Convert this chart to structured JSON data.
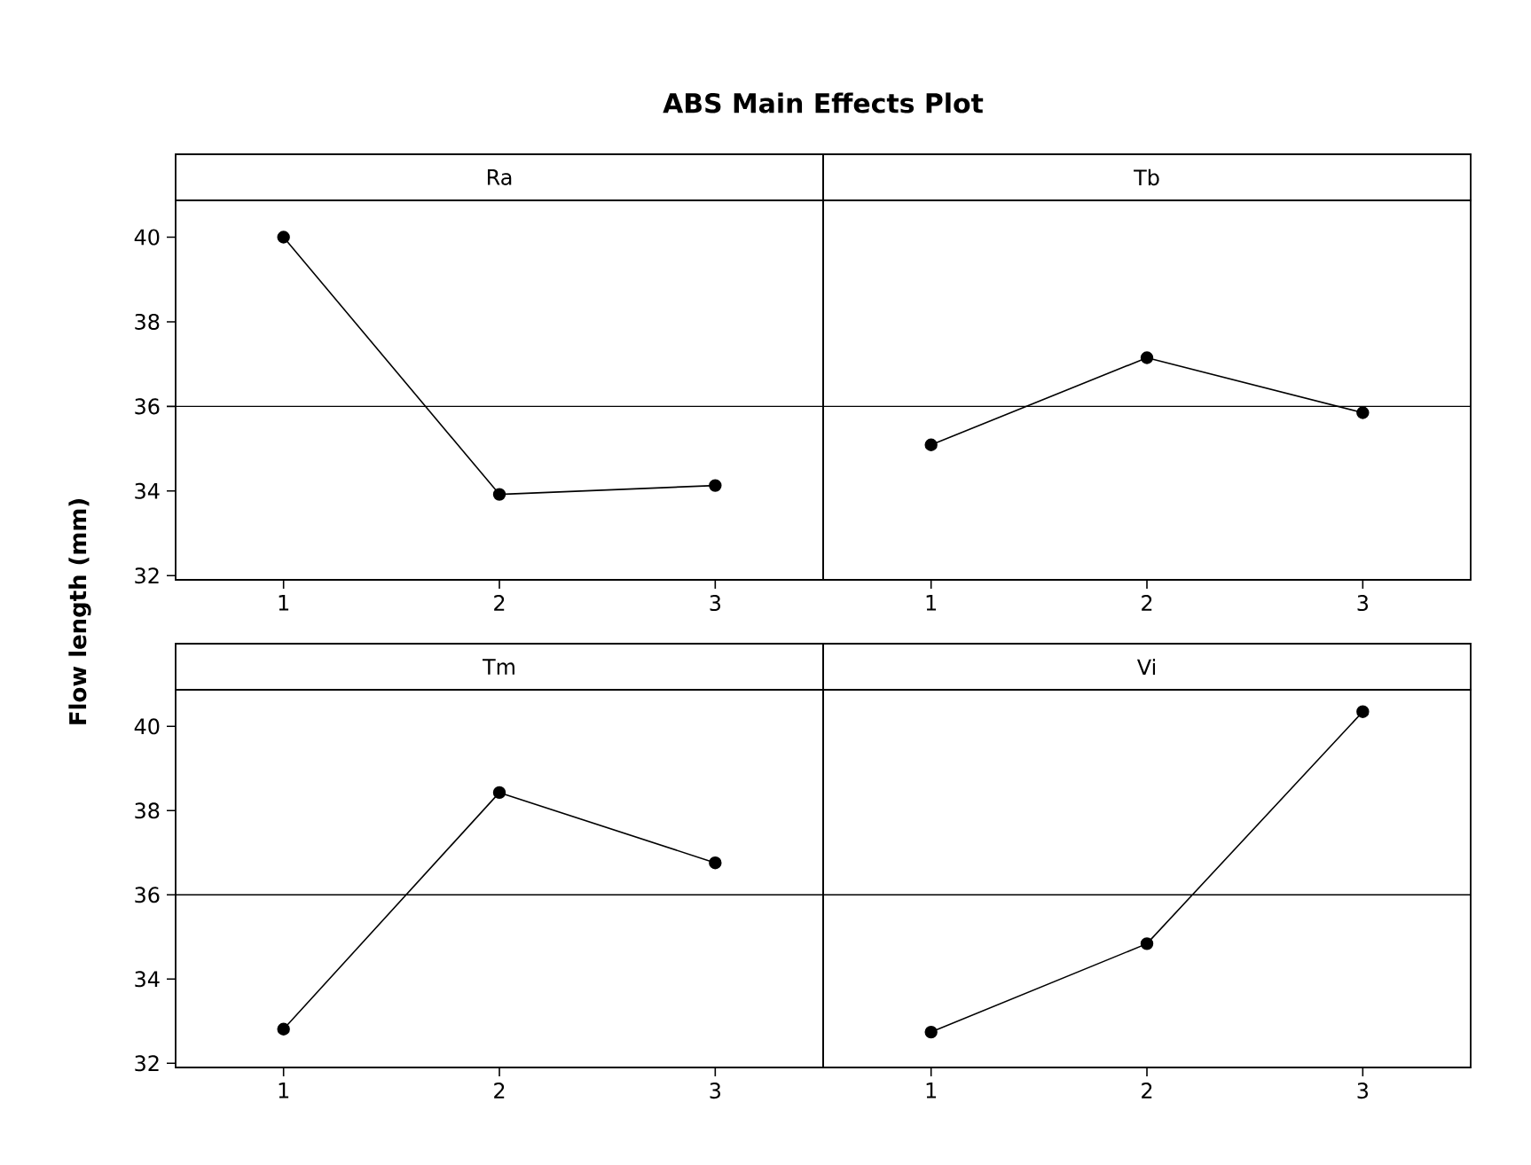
{
  "chart_data": [
    {
      "type": "line",
      "title": "ABS Main Effects Plot",
      "subtitle": "Ra",
      "ylabel": "Flow length (mm)",
      "categories": [
        "1",
        "2",
        "3"
      ],
      "values": [
        40.0,
        33.92,
        34.13
      ],
      "color": "#000000",
      "marker": "circle",
      "ylim": [
        31.9,
        40.87
      ],
      "yticks": [
        32,
        34,
        36,
        38,
        40
      ],
      "ref_lines": [
        {
          "axis": "y",
          "value": 36
        }
      ]
    },
    {
      "type": "line",
      "subtitle": "Tb",
      "categories": [
        "1",
        "2",
        "3"
      ],
      "values": [
        35.09,
        37.15,
        35.85
      ],
      "color": "#000000",
      "marker": "circle",
      "ylim": [
        31.9,
        40.87
      ],
      "yticks": [
        32,
        34,
        36,
        38,
        40
      ],
      "tick_labels": "x",
      "ref_lines": [
        {
          "axis": "y",
          "value": 36
        }
      ]
    },
    {
      "type": "line",
      "subtitle": "Tm",
      "categories": [
        "1",
        "2",
        "3"
      ],
      "values": [
        32.81,
        38.43,
        36.76
      ],
      "color": "#000000",
      "marker": "circle",
      "ylim": [
        31.9,
        40.87
      ],
      "yticks": [
        32,
        34,
        36,
        38,
        40
      ],
      "ref_lines": [
        {
          "axis": "y",
          "value": 36
        }
      ]
    },
    {
      "type": "line",
      "subtitle": "Vi",
      "categories": [
        "1",
        "2",
        "3"
      ],
      "values": [
        32.74,
        34.84,
        40.35
      ],
      "color": "#000000",
      "marker": "circle",
      "ylim": [
        31.9,
        40.87
      ],
      "yticks": [
        32,
        34,
        36,
        38,
        40
      ],
      "tick_labels": "x",
      "ref_lines": [
        {
          "axis": "y",
          "value": 36
        }
      ]
    }
  ]
}
